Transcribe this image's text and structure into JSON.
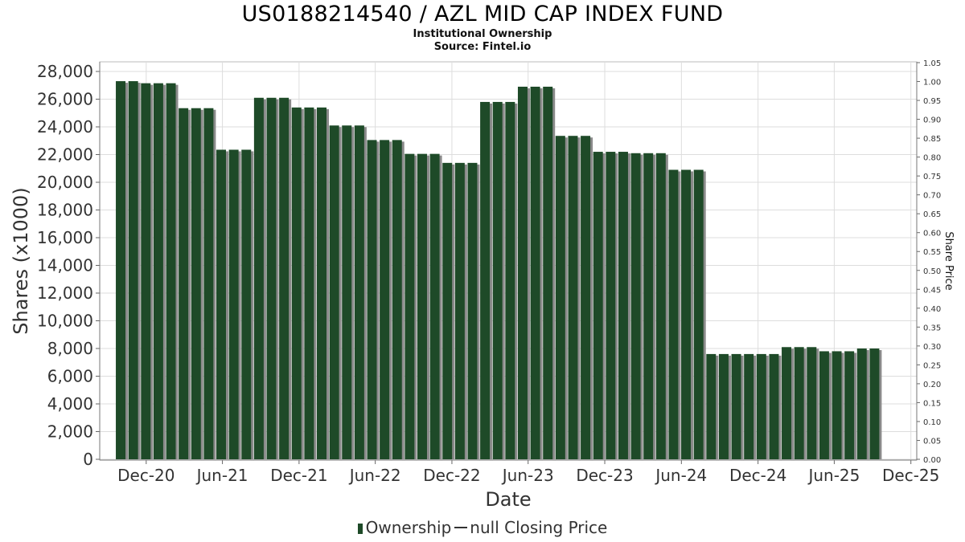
{
  "header": {
    "title": "US0188214540 / AZL MID CAP INDEX FUND",
    "subtitle1": "Institutional Ownership",
    "subtitle2": "Source: Fintel.io"
  },
  "legend": {
    "ownership_label": "Ownership",
    "price_label": "null Closing Price"
  },
  "colors": {
    "bar": "#1e4a28",
    "bar_shadow": "#8a8a8a",
    "grid": "#dddddd"
  },
  "chart_data": {
    "type": "bar",
    "xlabel": "Date",
    "ylabel": "Shares (x1000)",
    "ylabel_right": "Share Price",
    "ylim": [
      0,
      28000
    ],
    "ylim_right": [
      0,
      1.05
    ],
    "y_ticks": [
      0,
      2000,
      4000,
      6000,
      8000,
      10000,
      12000,
      14000,
      16000,
      18000,
      20000,
      22000,
      24000,
      26000,
      28000
    ],
    "y_ticks_right": [
      "0.00",
      "0.05",
      "0.10",
      "0.15",
      "0.20",
      "0.25",
      "0.30",
      "0.35",
      "0.40",
      "0.45",
      "0.50",
      "0.55",
      "0.60",
      "0.65",
      "0.70",
      "0.75",
      "0.80",
      "0.85",
      "0.90",
      "0.95",
      "1.00",
      "1.05"
    ],
    "x_ticks": [
      "Dec-20",
      "Jun-21",
      "Dec-21",
      "Jun-22",
      "Dec-22",
      "Jun-23",
      "Dec-23",
      "Jun-24",
      "Dec-24",
      "Jun-25",
      "Dec-25"
    ],
    "x_range": [
      "2020-08-12",
      "2025-12-15"
    ],
    "grid": true,
    "legend_position": "bottom",
    "series": [
      {
        "name": "Ownership",
        "dates": [
          "2020-10-01",
          "2020-10-31",
          "2020-11-30",
          "2020-12-30",
          "2021-01-29",
          "2021-02-28",
          "2021-03-30",
          "2021-04-29",
          "2021-05-29",
          "2021-06-28",
          "2021-07-28",
          "2021-08-27",
          "2021-09-26",
          "2021-10-26",
          "2021-11-25",
          "2021-12-25",
          "2022-01-24",
          "2022-02-23",
          "2022-03-25",
          "2022-04-24",
          "2022-05-24",
          "2022-06-23",
          "2022-07-23",
          "2022-08-22",
          "2022-09-21",
          "2022-10-21",
          "2022-11-20",
          "2022-12-20",
          "2023-01-19",
          "2023-02-18",
          "2023-03-20",
          "2023-04-19",
          "2023-05-19",
          "2023-06-18",
          "2023-07-18",
          "2023-08-17",
          "2023-09-16",
          "2023-10-16",
          "2023-11-15",
          "2023-12-15",
          "2024-01-14",
          "2024-02-13",
          "2024-03-14",
          "2024-04-13",
          "2024-05-13",
          "2024-06-12",
          "2024-07-12",
          "2024-08-11",
          "2024-09-10",
          "2024-10-10",
          "2024-11-09",
          "2024-12-09",
          "2025-01-08",
          "2025-02-07",
          "2025-03-09",
          "2025-04-08",
          "2025-05-08",
          "2025-06-07",
          "2025-07-07",
          "2025-08-06",
          "2025-09-05"
        ],
        "values": [
          27300,
          27300,
          27150,
          27150,
          27150,
          25350,
          25350,
          25350,
          22350,
          22350,
          22350,
          26100,
          26100,
          26100,
          25400,
          25400,
          25400,
          24100,
          24100,
          24100,
          23050,
          23050,
          23050,
          22050,
          22050,
          22050,
          21400,
          21400,
          21400,
          25800,
          25800,
          25800,
          26900,
          26900,
          26900,
          23350,
          23350,
          23350,
          22200,
          22200,
          22200,
          22100,
          22100,
          22100,
          20900,
          20900,
          20900,
          7600,
          7600,
          7600,
          7600,
          7600,
          7600,
          8100,
          8100,
          8100,
          7800,
          7800,
          7800,
          8000,
          8000
        ]
      }
    ]
  }
}
